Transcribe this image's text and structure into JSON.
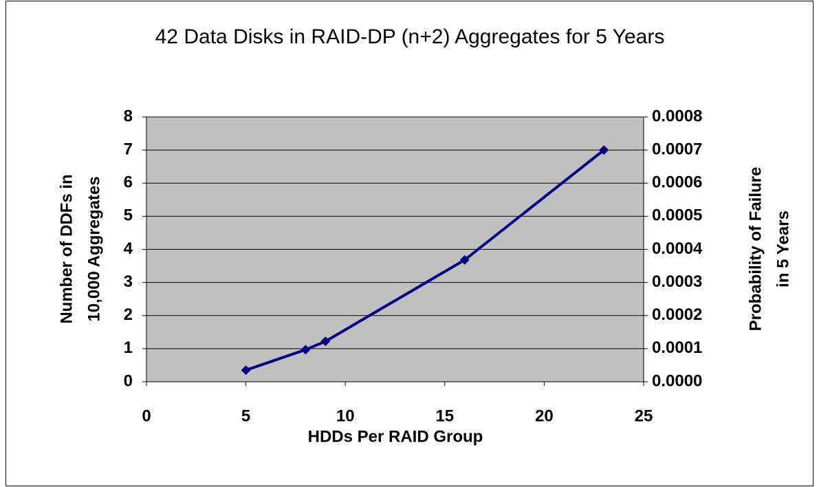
{
  "chart_data": {
    "type": "line",
    "title": "42 Data Disks in RAID-DP (n+2) Aggregates for 5 Years",
    "xlabel": "HDDs Per RAID Group",
    "ylabel": [
      "Number of DDFs in",
      "10,000 Aggregates"
    ],
    "y2label": [
      "Probability of Failure",
      "in 5 Years"
    ],
    "x": [
      5,
      8,
      9,
      16,
      23
    ],
    "series": [
      {
        "color": "#000080",
        "values": [
          0.35,
          0.97,
          1.22,
          3.68,
          7.0
        ],
        "axis": "y"
      }
    ],
    "xlim": [
      0,
      25
    ],
    "xticks": [
      0,
      5,
      10,
      15,
      20,
      25
    ],
    "ylim": [
      0,
      8
    ],
    "yticks": [
      0,
      1,
      2,
      3,
      4,
      5,
      6,
      7,
      8
    ],
    "y2lim": [
      0,
      0.0008
    ],
    "y2ticks": [
      {
        "value": 0,
        "label": "0.0000"
      },
      0.0001,
      0.0002,
      0.0003,
      0.0004,
      0.0005,
      0.0006,
      0.0007,
      0.0008
    ],
    "grid": true,
    "plot_background": "#c0c0c0"
  }
}
